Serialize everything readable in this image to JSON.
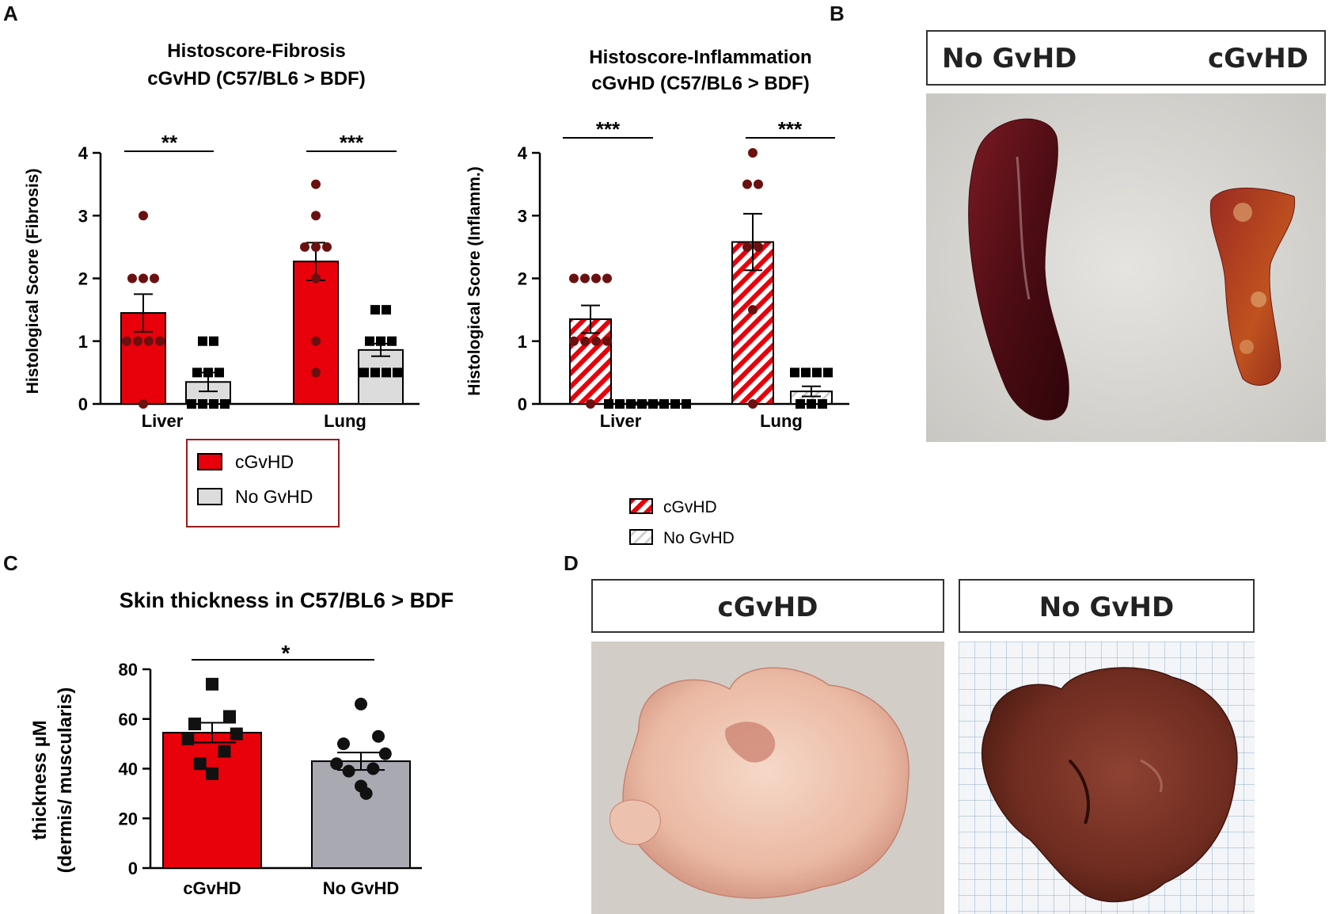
{
  "panels": {
    "A": "A",
    "B": "B",
    "C": "C",
    "D": "D"
  },
  "colors": {
    "red": "#e8000b",
    "grey_light": "#dcdcdc",
    "grey_mid": "#a9a9b2",
    "dot": "#6b1010",
    "black": "#000000"
  },
  "chart_data": [
    {
      "id": "fibrosis",
      "type": "bar",
      "title_line1": "Histoscore-Fibrosis",
      "title_line2": "cGvHD (C57/BL6 > BDF)",
      "ylabel": "Histological Score (Fibrosis)",
      "ylim": [
        0,
        4
      ],
      "yticks": [
        "0",
        "1",
        "2",
        "3",
        "4"
      ],
      "categories": [
        "Liver",
        "Lung"
      ],
      "significance": [
        "**",
        "***"
      ],
      "series": [
        {
          "name": "cGvHD",
          "values": [
            1.45,
            2.27
          ],
          "sem": [
            0.3,
            0.3
          ],
          "points": [
            [
              3,
              2,
              2,
              2,
              1,
              1,
              1,
              1,
              0
            ],
            [
              3.5,
              3,
              2.5,
              2.5,
              2.5,
              2,
              1,
              0.5
            ]
          ]
        },
        {
          "name": "No GvHD",
          "values": [
            0.35,
            0.86
          ],
          "sem": [
            0.15,
            0.1
          ],
          "points": [
            [
              1,
              1,
              0.5,
              0.5,
              0.5,
              0,
              0,
              0,
              0
            ],
            [
              1.5,
              1.5,
              1,
              1,
              1,
              0.5,
              0.5,
              0.5,
              0.5
            ]
          ]
        }
      ],
      "legend": [
        "cGvHD",
        "No GvHD"
      ]
    },
    {
      "id": "inflammation",
      "type": "bar",
      "title_line1": "Histoscore-Inflammation",
      "title_line2": "cGvHD (C57/BL6 > BDF)",
      "ylabel": "Histological Score (Inflamm.)",
      "ylim": [
        0,
        4
      ],
      "yticks": [
        "0",
        "1",
        "2",
        "3",
        "4"
      ],
      "categories": [
        "Liver",
        "Lung"
      ],
      "significance": [
        "***",
        "***"
      ],
      "series": [
        {
          "name": "cGvHD",
          "values": [
            1.35,
            2.58
          ],
          "sem": [
            0.22,
            0.45
          ],
          "points": [
            [
              2,
              2,
              2,
              2,
              1,
              1,
              1,
              1,
              0
            ],
            [
              4,
              3.5,
              3.5,
              2.5,
              2.5,
              1.5,
              0
            ]
          ]
        },
        {
          "name": "No GvHD",
          "values": [
            0.0,
            0.2
          ],
          "sem": [
            0.0,
            0.08
          ],
          "points": [
            [
              0,
              0,
              0,
              0,
              0,
              0,
              0,
              0
            ],
            [
              0.5,
              0.5,
              0.5,
              0.5,
              0,
              0,
              0
            ]
          ]
        }
      ],
      "legend": [
        "cGvHD",
        "No GvHD"
      ]
    },
    {
      "id": "skin",
      "type": "bar",
      "title": "Skin thickness in C57/BL6 > BDF",
      "ylabel_line1": "thickness µM",
      "ylabel_line2": "(dermis/ muscularis)",
      "ylim": [
        0,
        80
      ],
      "yticks": [
        "0",
        "20",
        "40",
        "60",
        "80"
      ],
      "categories": [
        "cGvHD",
        "No GvHD"
      ],
      "significance": "*",
      "values": [
        54.5,
        43
      ],
      "sem": [
        4,
        3.5
      ],
      "points": [
        [
          74,
          61,
          58,
          54,
          52,
          47,
          42,
          38
        ],
        [
          66,
          53,
          50,
          46,
          42,
          40,
          39,
          33,
          30
        ]
      ]
    }
  ],
  "photo_B": {
    "left_label": "No GvHD",
    "right_label": "cGvHD"
  },
  "photo_D": {
    "left_label": "cGvHD",
    "right_label": "No GvHD"
  }
}
